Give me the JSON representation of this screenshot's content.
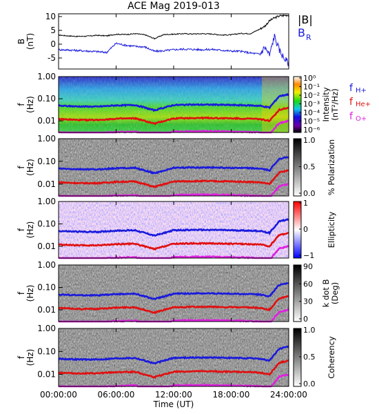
{
  "title": "ACE Mag 2019-013",
  "xaxis": {
    "label": "Time (UT)",
    "ticks": [
      "00:00:00",
      "06:00:00",
      "12:00:00",
      "18:00:00",
      "24:00:00"
    ],
    "tick_hours": [
      0,
      6,
      12,
      18,
      24
    ],
    "range_hours": [
      0,
      24
    ]
  },
  "colors": {
    "B_total": "#000000",
    "B_R": "#1a1adc",
    "f_H": "#1a1adc",
    "f_He": "#e01010",
    "f_O": "#e020e0",
    "frame": "#000000"
  },
  "legend_symbols": [
    "|B|",
    "B",
    "R",
    "f",
    "H+",
    "f",
    "He+",
    "f",
    "O+"
  ],
  "panels": [
    {
      "id": "field",
      "ylabel_top": "B",
      "ylabel_bottom": "(nT)",
      "ylim": [
        -9,
        11
      ],
      "yticks": [
        10,
        5,
        0,
        -5
      ],
      "ytick_labels": [
        "10",
        "5",
        "0",
        "-5"
      ]
    },
    {
      "id": "intensity",
      "ylabel_top": "f",
      "ylabel_bottom": "(Hz)",
      "yticks_labels": [
        "1.00",
        "0.10",
        "0.01"
      ],
      "colorbar_label": "Intensity",
      "colorbar_label2": "(nT²/Hz)",
      "colorbar_type": "rainbow",
      "colorbar_ticks": [
        "10⁰",
        "10⁻¹",
        "10⁻²",
        "10⁻³",
        "10⁻⁴",
        "10⁻⁵",
        "10⁻⁶"
      ]
    },
    {
      "id": "polarization",
      "ylabel_top": "f",
      "ylabel_bottom": "(Hz)",
      "yticks_labels": [
        "1.00",
        "0.10",
        "0.01"
      ],
      "colorbar_label": "% Polarization",
      "colorbar_type": "gray",
      "colorbar_ticks": [
        "1.0",
        "0.5",
        "0.0"
      ]
    },
    {
      "id": "ellipticity",
      "ylabel_top": "f",
      "ylabel_bottom": "(Hz)",
      "yticks_labels": [
        "1.00",
        "0.10",
        "0.01"
      ],
      "colorbar_label": "Ellipticity",
      "colorbar_type": "bwr",
      "colorbar_ticks": [
        "1",
        "0",
        "−1"
      ]
    },
    {
      "id": "kdotb",
      "ylabel_top": "f",
      "ylabel_bottom": "(Hz)",
      "yticks_labels": [
        "1.00",
        "0.10",
        "0.01"
      ],
      "colorbar_label": "k dot B",
      "colorbar_label2": "(Deg)",
      "colorbar_type": "gray",
      "colorbar_ticks": [
        "90",
        "60",
        "30",
        "0"
      ]
    },
    {
      "id": "coherency",
      "ylabel_top": "f",
      "ylabel_bottom": "(Hz)",
      "yticks_labels": [
        "1.00",
        "0.10",
        "0.01"
      ],
      "colorbar_label": "Coherency",
      "colorbar_type": "gray",
      "colorbar_ticks": [
        "1.0",
        "0.5",
        "0.0"
      ]
    }
  ],
  "chart_data": {
    "type": "line",
    "title": "ACE Mag 2019-013",
    "xlabel": "Time (UT)",
    "ylabel": "B (nT)",
    "xlim": [
      0,
      24
    ],
    "ylim": [
      -9,
      11
    ],
    "x": [
      0,
      1,
      2,
      3,
      4,
      5,
      6,
      7,
      8,
      9,
      10,
      11,
      12,
      13,
      14,
      15,
      16,
      17,
      18,
      19,
      20,
      21,
      21.5,
      22,
      22.5,
      23,
      23.5,
      24
    ],
    "series": [
      {
        "name": "|B|",
        "values": [
          3.3,
          3.0,
          2.8,
          2.9,
          3.2,
          3.0,
          3.6,
          3.5,
          3.8,
          3.4,
          2.0,
          3.5,
          3.6,
          3.8,
          3.7,
          3.8,
          3.7,
          3.3,
          3.4,
          3.9,
          3.8,
          5.5,
          6.5,
          8.5,
          9.5,
          10.2,
          10.4,
          10.6
        ]
      },
      {
        "name": "B",
        "values": [
          -2.0,
          -2.1,
          -2.3,
          -2.5,
          -2.7,
          -3.0,
          0.3,
          -0.4,
          -0.8,
          -1.0,
          -2.6,
          -2.4,
          -2.0,
          -1.8,
          -1.9,
          -2.0,
          -1.9,
          -2.2,
          -2.5,
          -2.6,
          -3.2,
          -3.6,
          -1.0,
          -4.0,
          3.0,
          -2.0,
          -5.0,
          -7.0
        ]
      }
    ],
    "frequency_lines": {
      "xlabel": "Time (UT)",
      "ylabel": "f (Hz)",
      "yscale": "log",
      "ylim": [
        0.003,
        1.0
      ],
      "x": [
        0,
        2,
        4,
        6,
        8,
        10,
        12,
        14,
        16,
        18,
        20,
        21,
        22,
        23,
        24
      ],
      "series": [
        {
          "name": "f H+",
          "values": [
            0.048,
            0.045,
            0.044,
            0.05,
            0.052,
            0.03,
            0.052,
            0.054,
            0.054,
            0.052,
            0.05,
            0.048,
            0.04,
            0.13,
            0.16
          ]
        },
        {
          "name": "f He+",
          "values": [
            0.012,
            0.011,
            0.011,
            0.0125,
            0.013,
            0.0075,
            0.013,
            0.0135,
            0.0135,
            0.013,
            0.0125,
            0.012,
            0.01,
            0.032,
            0.04
          ]
        },
        {
          "name": "f O+",
          "values": [
            0.003,
            0.0028,
            0.0028,
            0.0031,
            0.0033,
            0.0019,
            0.0033,
            0.0034,
            0.0034,
            0.0033,
            0.0031,
            0.003,
            0.0025,
            0.008,
            0.01
          ]
        }
      ]
    }
  }
}
